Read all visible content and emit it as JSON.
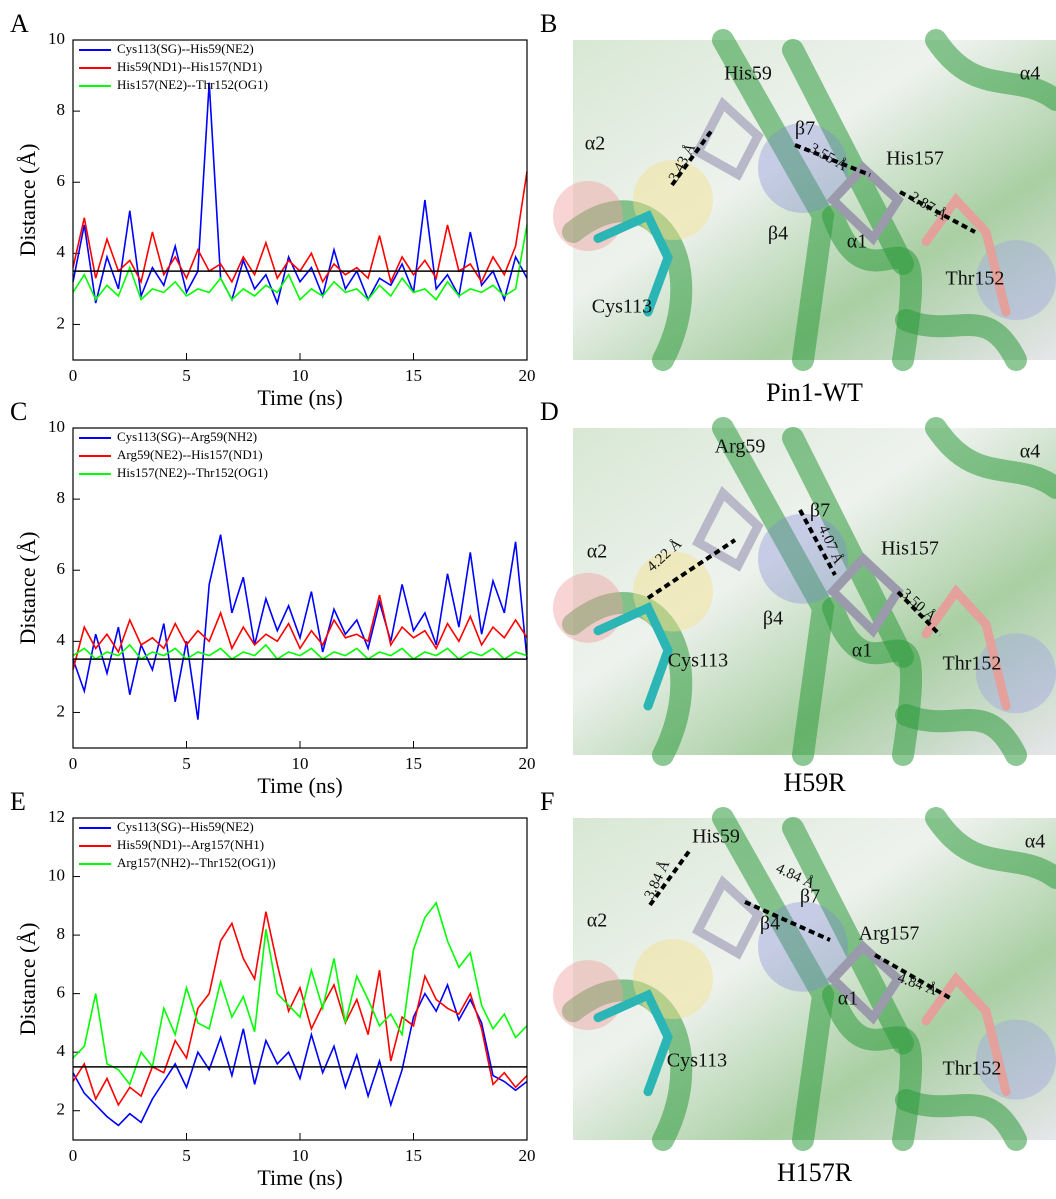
{
  "chart_data": [
    {
      "type": "line",
      "panel_label": "A",
      "xlabel": "Time (ns)",
      "ylabel": "Distance (Å)",
      "x": [
        0,
        0.5,
        1,
        1.5,
        2,
        2.5,
        3,
        3.5,
        4,
        4.5,
        5,
        5.5,
        6,
        6.5,
        7,
        7.5,
        8,
        8.5,
        9,
        9.5,
        10,
        10.5,
        11,
        11.5,
        12,
        12.5,
        13,
        13.5,
        14,
        14.5,
        15,
        15.5,
        16,
        16.5,
        17,
        17.5,
        18,
        18.5,
        19,
        19.5,
        20
      ],
      "xlim": [
        0,
        20
      ],
      "xticks": [
        0,
        5,
        10,
        15,
        20
      ],
      "ylim": [
        1,
        10
      ],
      "yticks": [
        2,
        4,
        6,
        8,
        10
      ],
      "reference_line": 3.5,
      "series": [
        {
          "name": "Cys113(SG)--His59(NE2)",
          "color": "#0000ff",
          "values": [
            3.2,
            4.8,
            2.6,
            3.9,
            3.0,
            5.2,
            2.8,
            3.6,
            3.1,
            4.2,
            2.9,
            3.5,
            8.8,
            3.3,
            2.7,
            3.8,
            3.0,
            3.4,
            2.6,
            3.9,
            3.2,
            3.6,
            2.8,
            4.1,
            3.0,
            3.5,
            2.7,
            3.3,
            3.1,
            3.7,
            2.9,
            5.5,
            3.0,
            3.4,
            2.8,
            4.6,
            3.1,
            3.5,
            2.7,
            3.9,
            3.3
          ]
        },
        {
          "name": "His59(ND1)--His157(ND1)",
          "color": "#ff0000",
          "values": [
            3.6,
            5.0,
            3.3,
            4.4,
            3.5,
            3.8,
            3.2,
            4.6,
            3.4,
            3.9,
            3.3,
            4.1,
            3.5,
            3.7,
            3.2,
            3.9,
            3.4,
            4.3,
            3.3,
            3.8,
            3.5,
            4.0,
            3.2,
            3.7,
            3.4,
            3.6,
            3.3,
            4.5,
            3.2,
            3.9,
            3.4,
            3.8,
            3.3,
            4.8,
            3.5,
            3.7,
            3.2,
            3.9,
            3.4,
            4.2,
            6.3
          ]
        },
        {
          "name": "His157(NE2)--Thr152(OG1)",
          "color": "#00ff00",
          "values": [
            2.9,
            3.4,
            2.7,
            3.1,
            2.8,
            3.6,
            2.7,
            3.0,
            2.9,
            3.2,
            2.8,
            3.0,
            2.9,
            3.3,
            2.7,
            3.0,
            2.8,
            3.1,
            2.9,
            3.4,
            2.7,
            3.0,
            2.8,
            3.2,
            2.9,
            3.0,
            2.7,
            3.1,
            2.8,
            3.3,
            2.9,
            3.0,
            2.7,
            3.2,
            2.8,
            3.0,
            2.9,
            3.1,
            2.8,
            3.0,
            4.8
          ]
        }
      ]
    },
    {
      "type": "line",
      "panel_label": "C",
      "xlabel": "Time (ns)",
      "ylabel": "Distance (Å)",
      "x": [
        0,
        0.5,
        1,
        1.5,
        2,
        2.5,
        3,
        3.5,
        4,
        4.5,
        5,
        5.5,
        6,
        6.5,
        7,
        7.5,
        8,
        8.5,
        9,
        9.5,
        10,
        10.5,
        11,
        11.5,
        12,
        12.5,
        13,
        13.5,
        14,
        14.5,
        15,
        15.5,
        16,
        16.5,
        17,
        17.5,
        18,
        18.5,
        19,
        19.5,
        20
      ],
      "xlim": [
        0,
        20
      ],
      "xticks": [
        0,
        5,
        10,
        15,
        20
      ],
      "ylim": [
        1,
        10
      ],
      "yticks": [
        2,
        4,
        6,
        8,
        10
      ],
      "reference_line": 3.5,
      "series": [
        {
          "name": "Cys113(SG)--Arg59(NH2)",
          "color": "#0000ff",
          "values": [
            3.5,
            2.6,
            4.2,
            3.1,
            4.4,
            2.5,
            3.9,
            3.2,
            4.5,
            2.3,
            4.0,
            1.8,
            5.6,
            7.0,
            4.8,
            5.8,
            3.9,
            5.2,
            4.3,
            5.0,
            4.1,
            5.4,
            3.7,
            4.9,
            4.2,
            4.6,
            3.8,
            5.1,
            4.0,
            5.6,
            4.3,
            4.8,
            3.9,
            5.9,
            4.4,
            6.5,
            4.2,
            5.7,
            4.8,
            6.8,
            3.5
          ]
        },
        {
          "name": "Arg59(NE2)--His157(ND1)",
          "color": "#ff0000",
          "values": [
            3.2,
            4.4,
            3.8,
            4.2,
            3.7,
            4.6,
            3.9,
            4.1,
            3.8,
            4.5,
            3.9,
            4.3,
            4.0,
            4.8,
            3.8,
            4.4,
            3.9,
            4.2,
            4.0,
            4.5,
            3.8,
            4.3,
            3.9,
            4.6,
            4.1,
            4.2,
            4.0,
            5.3,
            3.9,
            4.4,
            4.1,
            4.3,
            3.8,
            4.5,
            4.0,
            4.7,
            3.9,
            4.4,
            4.1,
            4.6,
            4.1
          ]
        },
        {
          "name": "His157(NE2)--Thr152(OG1)",
          "color": "#00ff00",
          "values": [
            3.6,
            3.8,
            3.5,
            3.7,
            3.6,
            3.9,
            3.5,
            3.7,
            3.6,
            3.8,
            3.5,
            3.7,
            3.6,
            3.8,
            3.5,
            3.7,
            3.6,
            3.9,
            3.5,
            3.7,
            3.6,
            3.8,
            3.5,
            3.7,
            3.6,
            3.8,
            3.5,
            3.7,
            3.6,
            3.8,
            3.5,
            3.7,
            3.6,
            3.8,
            3.5,
            3.7,
            3.6,
            3.8,
            3.5,
            3.7,
            3.6
          ]
        }
      ]
    },
    {
      "type": "line",
      "panel_label": "E",
      "xlabel": "Time (ns)",
      "ylabel": "Distance (Å)",
      "x": [
        0,
        0.5,
        1,
        1.5,
        2,
        2.5,
        3,
        3.5,
        4,
        4.5,
        5,
        5.5,
        6,
        6.5,
        7,
        7.5,
        8,
        8.5,
        9,
        9.5,
        10,
        10.5,
        11,
        11.5,
        12,
        12.5,
        13,
        13.5,
        14,
        14.5,
        15,
        15.5,
        16,
        16.5,
        17,
        17.5,
        18,
        18.5,
        19,
        19.5,
        20
      ],
      "xlim": [
        0,
        20
      ],
      "xticks": [
        0,
        5,
        10,
        15,
        20
      ],
      "ylim": [
        1,
        12
      ],
      "yticks": [
        2,
        4,
        6,
        8,
        10,
        12
      ],
      "reference_line": 3.5,
      "series": [
        {
          "name": "Cys113(SG)--His59(NE2)",
          "color": "#0000ff",
          "values": [
            3.3,
            2.6,
            2.2,
            1.8,
            1.5,
            1.9,
            1.6,
            2.4,
            3.0,
            3.6,
            2.8,
            4.0,
            3.4,
            4.5,
            3.2,
            4.8,
            2.9,
            4.4,
            3.6,
            4.0,
            3.1,
            4.6,
            3.3,
            4.2,
            2.8,
            3.9,
            2.5,
            3.7,
            2.2,
            3.4,
            5.2,
            6.0,
            5.4,
            6.3,
            5.1,
            5.8,
            5.0,
            3.2,
            3.0,
            2.7,
            3.0
          ]
        },
        {
          "name": "His59(ND1)--Arg157(NH1)",
          "color": "#ff0000",
          "values": [
            3.0,
            3.6,
            2.4,
            3.1,
            2.2,
            2.8,
            2.5,
            3.5,
            3.3,
            4.4,
            3.8,
            5.5,
            6.0,
            7.8,
            8.4,
            7.2,
            6.5,
            8.8,
            7.0,
            5.4,
            6.2,
            4.8,
            5.6,
            6.3,
            5.0,
            5.8,
            4.6,
            6.8,
            3.7,
            5.2,
            4.9,
            6.6,
            5.8,
            5.5,
            5.3,
            6.0,
            4.8,
            2.9,
            3.3,
            2.8,
            3.2
          ]
        },
        {
          "name": "Arg157(NH2)--Thr152(OG1))",
          "color": "#00ff00",
          "values": [
            3.8,
            4.2,
            6.0,
            3.6,
            3.4,
            2.9,
            4.0,
            3.5,
            5.5,
            4.6,
            6.2,
            5.0,
            4.8,
            6.4,
            5.2,
            5.9,
            4.7,
            8.2,
            6.0,
            5.6,
            5.2,
            6.8,
            5.5,
            7.2,
            5.0,
            6.6,
            5.8,
            4.9,
            5.3,
            4.6,
            7.5,
            8.6,
            9.1,
            7.8,
            6.9,
            7.4,
            5.6,
            4.8,
            5.3,
            4.5,
            4.9
          ]
        }
      ]
    }
  ],
  "structures": [
    {
      "panel_label": "B",
      "caption": "Pin1-WT",
      "labels": [
        "His59",
        "β7",
        "α4",
        "α2",
        "His157",
        "β4",
        "α1",
        "Thr152",
        "Cys113"
      ],
      "distances": [
        "3.43 Å",
        "3.55 Å",
        "2.87 Å"
      ]
    },
    {
      "panel_label": "D",
      "caption": "H59R",
      "labels": [
        "Arg59",
        "α4",
        "β7",
        "α2",
        "His157",
        "β4",
        "Cys113",
        "α1",
        "Thr152"
      ],
      "distances": [
        "4.22 Å",
        "4.07 Å",
        "3.50 Å"
      ]
    },
    {
      "panel_label": "F",
      "caption": "H157R",
      "labels": [
        "His59",
        "α4",
        "β7",
        "α2",
        "Arg157",
        "β4",
        "α1",
        "Cys113",
        "Thr152"
      ],
      "distances": [
        "3.84 Å",
        "4.84 Å",
        "4.84 Å"
      ]
    }
  ]
}
